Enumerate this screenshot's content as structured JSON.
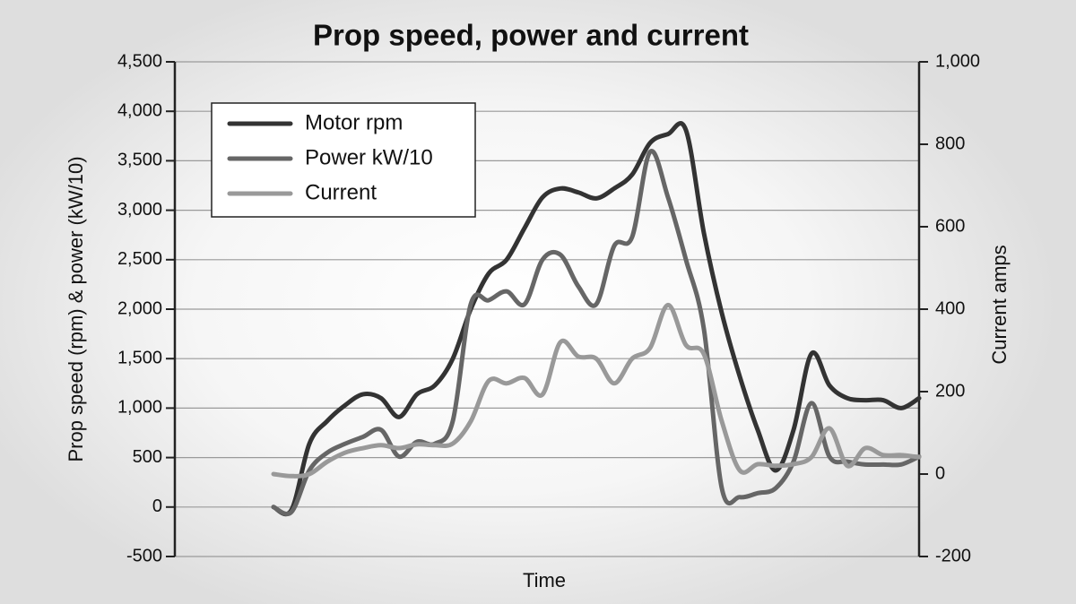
{
  "chart_data": {
    "type": "line",
    "title": "Prop speed, power and current",
    "x_label": "Time",
    "y_label": "Prop speed (rpm) & power (kW/10)",
    "y2_label": "Current amps",
    "categories": [
      null,
      null,
      null,
      null,
      null,
      null,
      null,
      null,
      null,
      null,
      null,
      null,
      null,
      null,
      null,
      null,
      null,
      null,
      null,
      null,
      null,
      null,
      null,
      null,
      null,
      null,
      null,
      null,
      null,
      null,
      null,
      null,
      null,
      null,
      null,
      null,
      null
    ],
    "ylim": [
      -500,
      4500
    ],
    "yticks": [
      -500,
      0,
      500,
      {
        "value": 1000,
        "label": "1,000"
      },
      {
        "value": 1500,
        "label": "1,500"
      },
      {
        "value": 2000,
        "label": "2,000"
      },
      {
        "value": 2500,
        "label": "2,500"
      },
      {
        "value": 3000,
        "label": "3,000"
      },
      {
        "value": 3500,
        "label": "3,500"
      },
      {
        "value": 4000,
        "label": "4,000"
      },
      {
        "value": 4500,
        "label": "4,500"
      }
    ],
    "y2lim": [
      -200,
      1000
    ],
    "y2ticks": [
      -200,
      0,
      200,
      400,
      600,
      800,
      {
        "value": 1000,
        "label": "1,000"
      }
    ],
    "grid": true,
    "legend": "upper left",
    "series": [
      {
        "name": "Motor rpm",
        "color": "#333333",
        "values": [
          0,
          -30,
          640,
          870,
          1030,
          1140,
          1100,
          910,
          1140,
          1230,
          1500,
          2000,
          2360,
          2500,
          2820,
          3130,
          3220,
          3180,
          3120,
          3220,
          3360,
          3680,
          3770,
          3810,
          2770,
          1960,
          1320,
          780,
          370,
          780,
          1550,
          1230,
          1100,
          1080,
          1080,
          1000,
          1100
        ]
      },
      {
        "name": "Power kW/10",
        "color": "#666666",
        "values": [
          0,
          -50,
          370,
          550,
          640,
          710,
          780,
          510,
          660,
          640,
          870,
          2050,
          2090,
          2180,
          2050,
          2500,
          2550,
          2230,
          2050,
          2640,
          2730,
          3590,
          3130,
          2500,
          1800,
          190,
          100,
          140,
          190,
          460,
          1050,
          510,
          460,
          430,
          430,
          430,
          510
        ]
      },
      {
        "name": "Current",
        "color": "#999999",
        "axis": "y2",
        "values": [
          0,
          -5,
          0,
          30,
          52,
          63,
          70,
          63,
          72,
          70,
          74,
          128,
          226,
          220,
          233,
          193,
          320,
          285,
          280,
          220,
          280,
          306,
          410,
          313,
          291,
          128,
          9,
          24,
          20,
          24,
          41,
          111,
          20,
          63,
          46,
          46,
          41
        ]
      }
    ]
  }
}
